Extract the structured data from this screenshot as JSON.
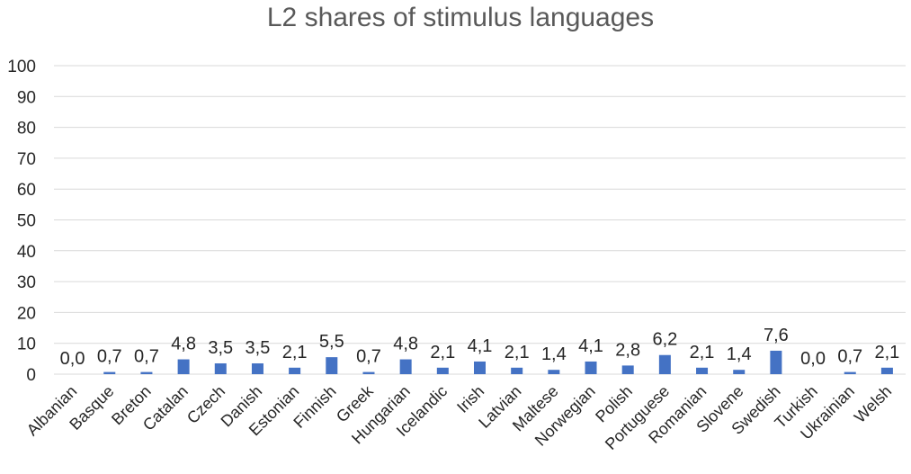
{
  "chart_data": {
    "type": "bar",
    "title": "L2 shares of stimulus languages",
    "categories": [
      "Albanian",
      "Basque",
      "Breton",
      "Catalan",
      "Czech",
      "Danish",
      "Estonian",
      "Finnish",
      "Greek",
      "Hungarian",
      "Icelandic",
      "Irish",
      "Latvian",
      "Maltese",
      "Norwegian",
      "Polish",
      "Portuguese",
      "Romanian",
      "Slovene",
      "Swedish",
      "Turkish",
      "Ukrainian",
      "Welsh"
    ],
    "values": [
      0.0,
      0.7,
      0.7,
      4.8,
      3.5,
      3.5,
      2.1,
      5.5,
      0.7,
      4.8,
      2.1,
      4.1,
      2.1,
      1.4,
      4.1,
      2.8,
      6.2,
      2.1,
      1.4,
      7.6,
      0.0,
      0.7,
      2.1
    ],
    "data_labels": [
      "0,0",
      "0,7",
      "0,7",
      "4,8",
      "3,5",
      "3,5",
      "2,1",
      "5,5",
      "0,7",
      "4,8",
      "2,1",
      "4,1",
      "2,1",
      "1,4",
      "4,1",
      "2,8",
      "6,2",
      "2,1",
      "1,4",
      "7,6",
      "0,0",
      "0,7",
      "2,1"
    ],
    "yticks": [
      0,
      10,
      20,
      30,
      40,
      50,
      60,
      70,
      80,
      90,
      100
    ],
    "ylim": [
      0,
      100
    ],
    "grid": true,
    "legend": "none",
    "bar_color": "#4472c4"
  }
}
